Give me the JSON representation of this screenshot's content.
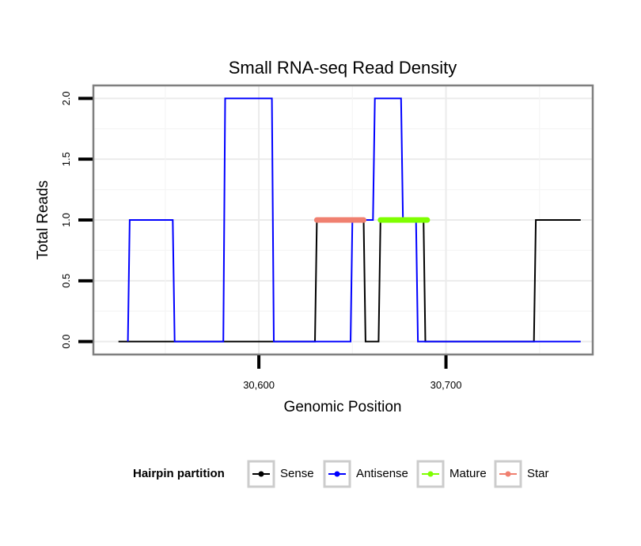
{
  "chart_data": {
    "type": "line",
    "title": "Small RNA-seq Read Density",
    "xlabel": "Genomic Position",
    "ylabel": "Total Reads",
    "xlim": [
      30512,
      30778
    ],
    "ylim": [
      -0.1,
      2.1
    ],
    "x_ticks": [
      30600,
      30700
    ],
    "x_tick_labels": [
      "30,600",
      "30,700"
    ],
    "y_ticks": [
      0,
      0.5,
      1,
      1.5,
      2
    ],
    "y_tick_labels": [
      "0.0",
      "0.5",
      "1.0",
      "1.5",
      "2.0"
    ],
    "grid": true,
    "legend_position": "bottom",
    "legend_title": "Hairpin partition",
    "series": [
      {
        "name": "Sense",
        "color": "#000000",
        "x": [
          30525,
          30630,
          30631,
          30656,
          30657,
          30664,
          30665,
          30688,
          30689,
          30747,
          30748,
          30772
        ],
        "y": [
          0,
          0,
          1,
          1,
          0,
          0,
          1,
          1,
          0,
          0,
          1,
          1
        ]
      },
      {
        "name": "Antisense",
        "color": "#0000ff",
        "x": [
          30530,
          30531,
          30554,
          30555,
          30581,
          30582,
          30607,
          30608,
          30649,
          30650,
          30659,
          30660,
          30661,
          30662,
          30676,
          30677,
          30684,
          30685,
          30772
        ],
        "y": [
          0,
          1,
          1,
          0,
          0,
          2,
          2,
          0,
          0,
          1,
          1,
          1,
          1,
          2,
          2,
          1,
          1,
          0,
          0
        ]
      },
      {
        "name": "Mature",
        "color": "#7fff00",
        "x": [
          30665,
          30690
        ],
        "y": [
          1,
          1
        ]
      },
      {
        "name": "Star",
        "color": "#f08070",
        "x": [
          30631,
          30656
        ],
        "y": [
          1,
          1
        ]
      }
    ]
  }
}
